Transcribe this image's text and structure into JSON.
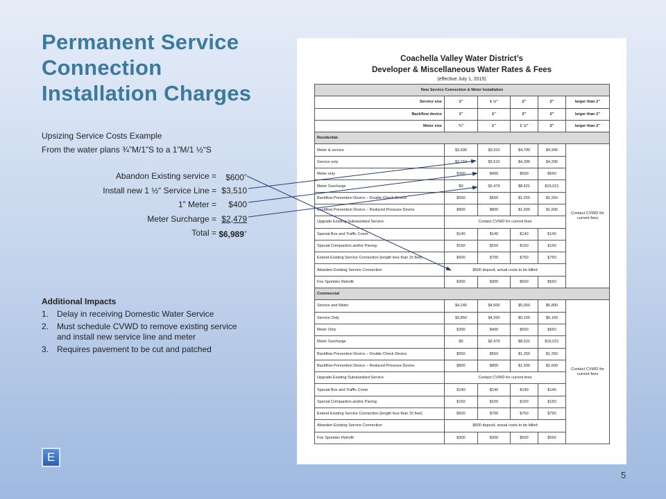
{
  "slide": {
    "title": [
      "Permanent Service",
      "Connection",
      "Installation Charges"
    ],
    "intro": [
      "Upsizing Service Costs Example",
      "From the water plans ¾”M/1”S to a 1”M/1 ½“S"
    ],
    "costs": [
      {
        "label": "Abandon Existing service =",
        "amount": "$600",
        "sup": "+"
      },
      {
        "label": "Install new 1 ½“ Service Line =",
        "amount": "$3,510"
      },
      {
        "label": "1” Meter =",
        "amount": "$400"
      },
      {
        "label": "Meter Surcharge =",
        "amount": "$2,479"
      },
      {
        "label": "Total =",
        "amount": "$6,989",
        "sup": "+"
      }
    ],
    "impacts_heading": "Additional Impacts",
    "impacts": [
      {
        "num": "1.",
        "text": "Delay in receiving Domestic Water Service"
      },
      {
        "num": "2.",
        "text": "Must schedule CVWD to remove existing service and install new service line and meter"
      },
      {
        "num": "3.",
        "text": "Requires pavement to be cut and patched"
      }
    ],
    "button": "E",
    "page_number": "5"
  },
  "document": {
    "title": [
      "Coachella Valley Water District’s",
      "Developer & Miscellaneous Water Rates & Fees"
    ],
    "effective": "(effective July 1, 2015)",
    "header": "New Service Connection & Meter Installation",
    "size_rows": [
      {
        "label": "Service size",
        "values": [
          "1”",
          "1 ½”",
          "2”",
          "2”",
          "larger than 2”"
        ]
      },
      {
        "label": "Backflow device",
        "values": [
          "1”",
          "1”",
          "2”",
          "2”",
          "larger than 2”"
        ]
      },
      {
        "label": "Meter size",
        "values": [
          "¾”",
          "1”",
          "1 ½”",
          "2”",
          "larger than 2”"
        ]
      }
    ],
    "sections": [
      {
        "name": "Residential",
        "note": "Contact CVWD for current fees",
        "rows": [
          {
            "label": "Meter & service",
            "values": [
              "$3,600",
              "$3,910",
              "$4,790",
              "$4,940"
            ]
          },
          {
            "label": "Service only",
            "values": [
              "$3,210",
              "$3,510",
              "$4,290",
              "$4,290"
            ]
          },
          {
            "label": "Meter only",
            "values": [
              "$390",
              "$400",
              "$500",
              "$650"
            ]
          },
          {
            "label": "Meter Surcharge",
            "values": [
              "$0",
              "$2,479",
              "$8,621",
              "$16,021"
            ]
          },
          {
            "label": "Backflow Prevention Device – Double Check Device",
            "values": [
              "$550",
              "$550",
              "$1,250",
              "$1,250"
            ]
          },
          {
            "label": "Backflow Prevention Device – Reduced Pressure Device",
            "values": [
              "$800",
              "$800",
              "$1,600",
              "$1,600"
            ]
          },
          {
            "label": "Upgrade Existing Substandard Service",
            "span": "Contact CVWD for current fees"
          },
          {
            "label": "Special Box and Traffic Cover",
            "values": [
              "$140",
              "$140",
              "$140",
              "$140"
            ]
          },
          {
            "label": "Special Compaction and/or Paving",
            "values": [
              "$150",
              "$150",
              "$150",
              "$150"
            ]
          },
          {
            "label": "Extend Existing Service Connection (length less than 15 feet)",
            "values": [
              "$600",
              "$700",
              "$750",
              "$750"
            ]
          },
          {
            "label": "Abandon Existing Service Connection",
            "span": "$600 deposit, actual costs to be billed"
          },
          {
            "label": "Fire Sprinkler Retrofit",
            "values": [
              "$300",
              "$300",
              "$500",
              "$550"
            ]
          }
        ]
      },
      {
        "name": "Commercial",
        "note": "Contact CVWD for current fees",
        "rows": [
          {
            "label": "Service and Meter",
            "values": [
              "$4,240",
              "$4,600",
              "$5,650",
              "$5,800"
            ]
          },
          {
            "label": "Service Only",
            "values": [
              "$3,850",
              "$4,200",
              "$5,150",
              "$5,150"
            ]
          },
          {
            "label": "Meter Only",
            "values": [
              "$390",
              "$400",
              "$500",
              "$650"
            ]
          },
          {
            "label": "Meter Surcharge",
            "values": [
              "$0",
              "$2,479",
              "$8,621",
              "$16,021"
            ]
          },
          {
            "label": "Backflow Prevention Device – Double Check Device",
            "values": [
              "$550",
              "$550",
              "$1,250",
              "$1,250"
            ]
          },
          {
            "label": "Backflow Prevention Device – Reduced Pressure Device",
            "values": [
              "$800",
              "$800",
              "$1,600",
              "$1,600"
            ]
          },
          {
            "label": "Upgrade Existing Substandard Service",
            "span": "Contact CVWD for current fees"
          },
          {
            "label": "Special Box and Traffic Cover",
            "values": [
              "$140",
              "$140",
              "$140",
              "$140"
            ]
          },
          {
            "label": "Special Compaction and/or Paving",
            "values": [
              "$150",
              "$150",
              "$150",
              "$150"
            ]
          },
          {
            "label": "Extend Existing Service Connection (length less than 15 feet)",
            "values": [
              "$600",
              "$700",
              "$750",
              "$750"
            ]
          },
          {
            "label": "Abandon Existing Service Connection",
            "span": "$600 deposit, actual costs to be billed"
          },
          {
            "label": "Fire Sprinkler Retrofit",
            "values": [
              "$300",
              "$300",
              "$500",
              "$550"
            ]
          }
        ]
      }
    ]
  }
}
